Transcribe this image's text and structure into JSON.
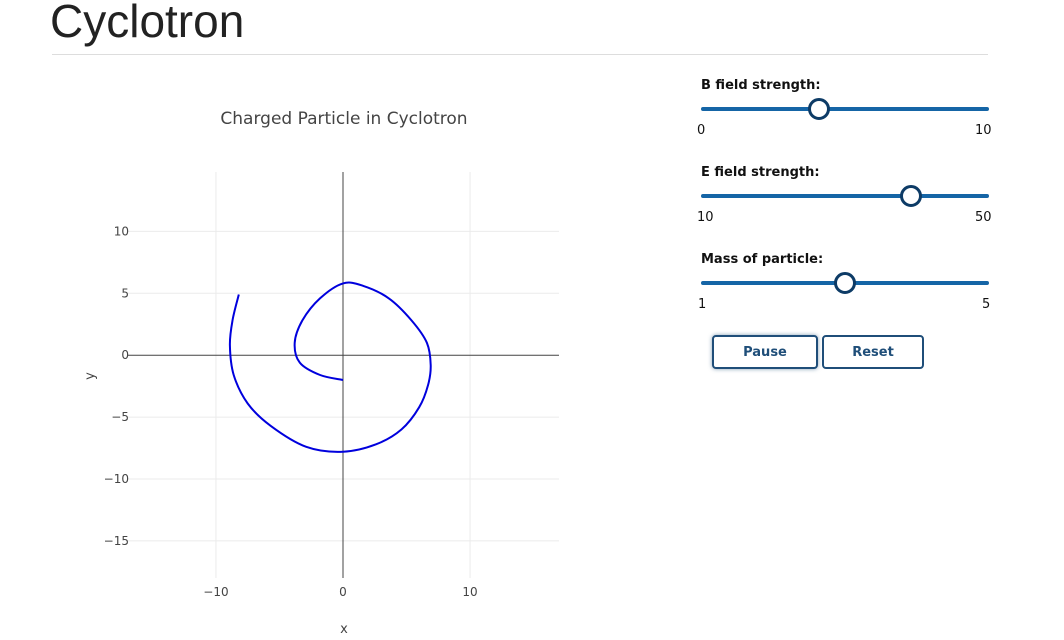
{
  "page": {
    "title": "Cyclotron"
  },
  "controls": {
    "b_field": {
      "label": "B field strength:",
      "min": 0,
      "max": 10,
      "value": 4.1,
      "min_label": "0",
      "max_label": "10"
    },
    "e_field": {
      "label": "E field strength:",
      "min": 10,
      "max": 50,
      "value": 39.2,
      "min_label": "10",
      "max_label": "50"
    },
    "mass": {
      "label": "Mass of particle:",
      "min": 1,
      "max": 5,
      "value": 3.0,
      "min_label": "1",
      "max_label": "5"
    },
    "buttons": {
      "pause_label": "Pause",
      "reset_label": "Reset"
    },
    "accent_color": "#1565a6",
    "thumb_border_color": "#0d3b66"
  },
  "chart_data": {
    "type": "line",
    "title": "Charged Particle in Cyclotron",
    "xlabel": "x",
    "ylabel": "y",
    "xlim": [
      -17,
      17
    ],
    "ylim": [
      -18,
      14.8
    ],
    "x_ticks": [
      -10,
      0,
      10
    ],
    "x_tick_labels": [
      "−10",
      "0",
      "10"
    ],
    "y_ticks": [
      10,
      5,
      0,
      -5,
      -10,
      -15
    ],
    "y_tick_labels": [
      "10",
      "5",
      "0",
      "−5",
      "−10",
      "−15"
    ],
    "grid": true,
    "zero_lines": true,
    "line_color": "#0000dd",
    "series": [
      {
        "x": [
          0,
          -1.8,
          -3.4,
          -3.8,
          -3.2,
          -1.8,
          0,
          1.6,
          3.6,
          5.4,
          6.6,
          6.9,
          6.7,
          6.0,
          4.6,
          2.6,
          0,
          -2.9,
          -5.7,
          -7.5,
          -8.6,
          -8.9,
          -8.7,
          -8.2
        ],
        "y": [
          -2.0,
          -1.6,
          -0.6,
          1.0,
          2.8,
          4.6,
          5.8,
          5.6,
          4.6,
          2.8,
          1.0,
          -0.8,
          -2.4,
          -4.2,
          -6.0,
          -7.2,
          -7.8,
          -7.4,
          -5.7,
          -3.9,
          -1.6,
          0.8,
          2.8,
          4.9
        ]
      }
    ]
  }
}
